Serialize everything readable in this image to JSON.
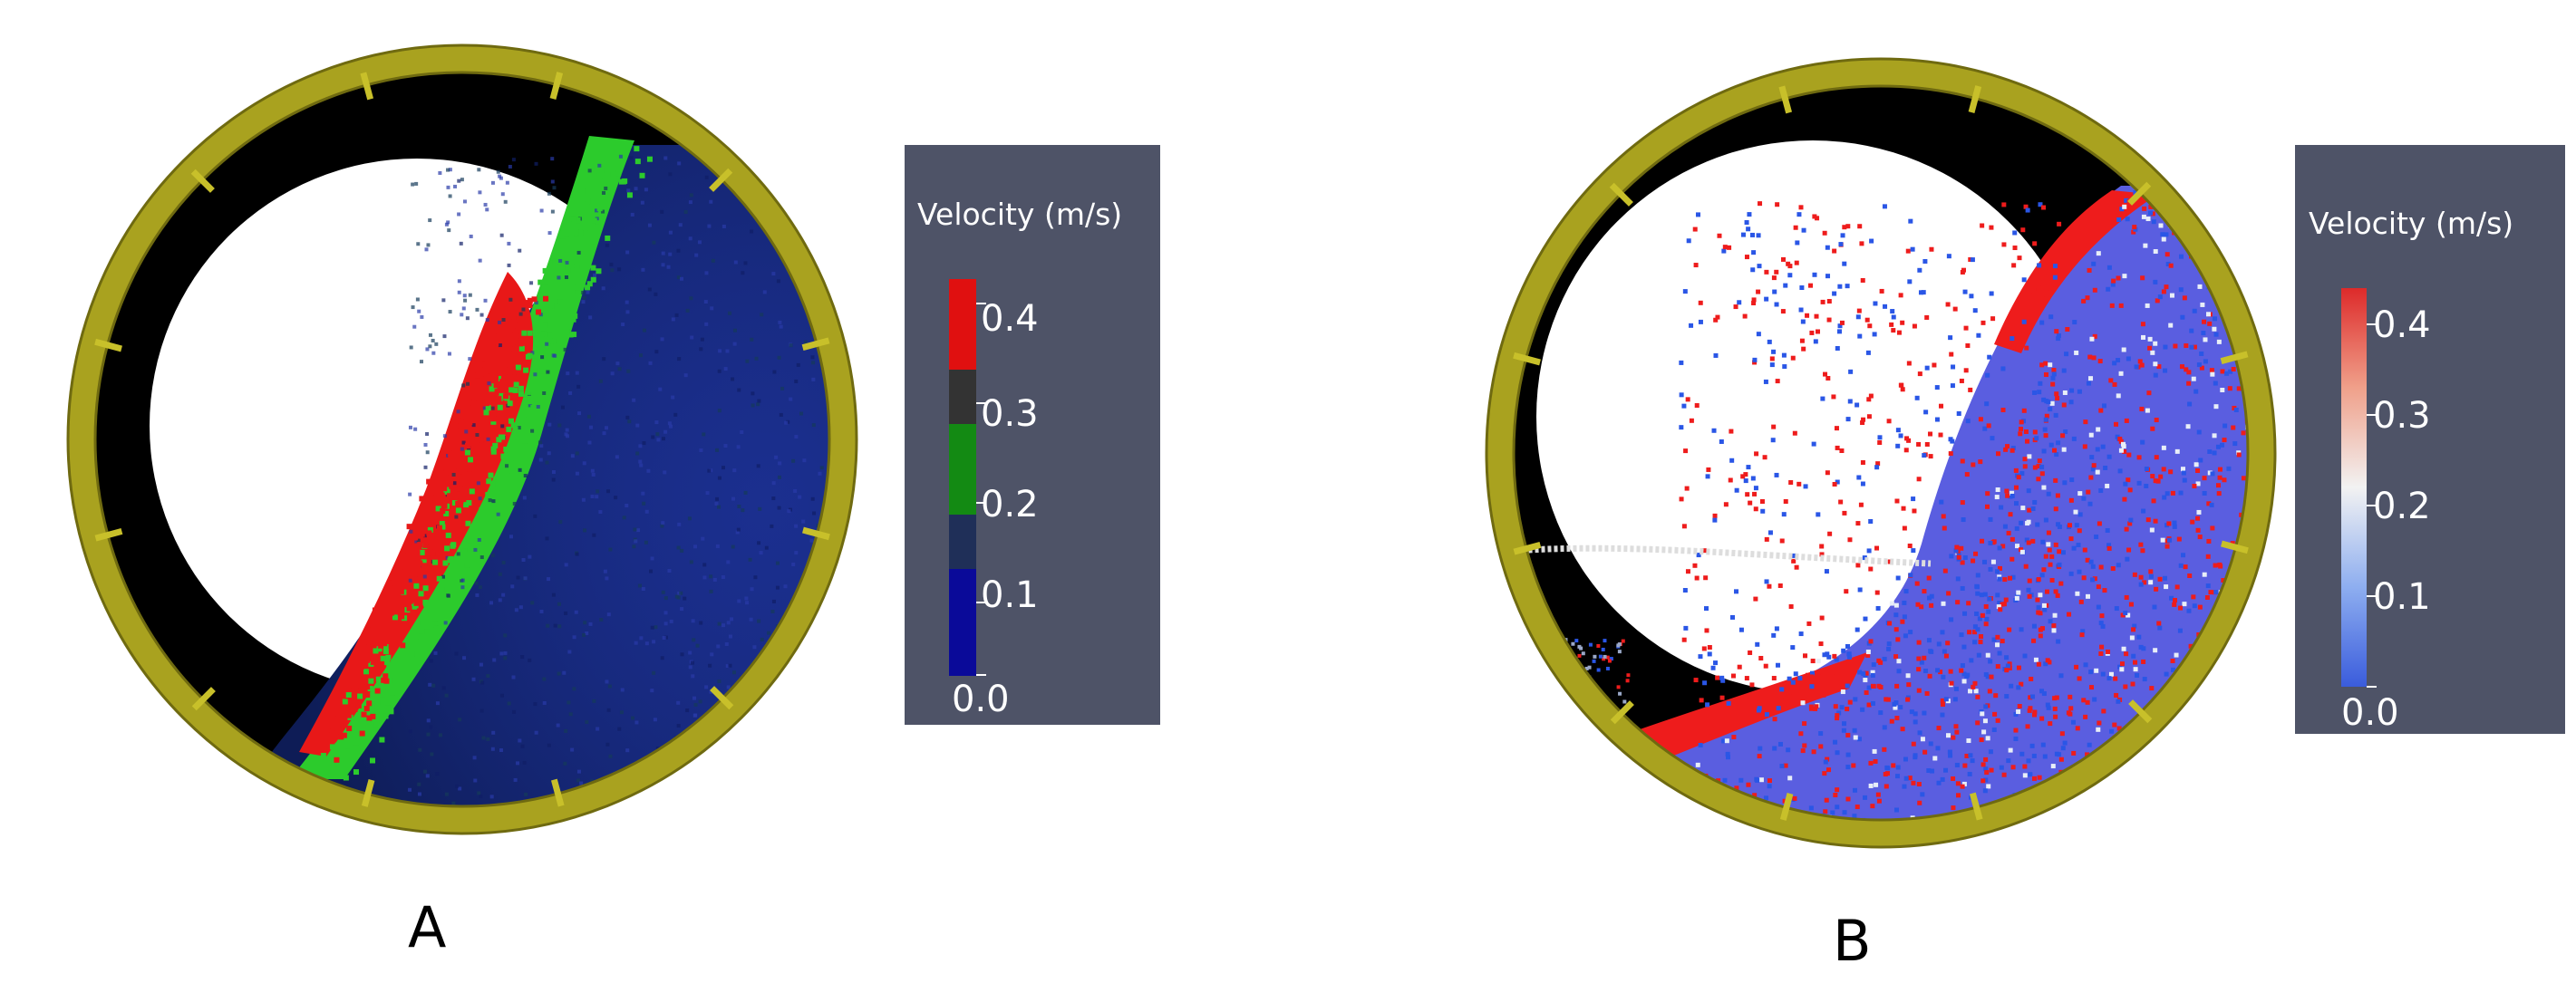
{
  "panels": [
    {
      "id": "A",
      "label": "A",
      "colorbar": {
        "title": "Velocity (m/s)",
        "ticks": [
          "0.4",
          "0.3",
          "0.2",
          "0.1",
          "0.0"
        ],
        "style": "discrete",
        "band_colors": [
          "#e01010",
          "#333333",
          "#138a13",
          "#1f2f58",
          "#0a0a99"
        ]
      },
      "particle_colors": {
        "fast": "#e81818",
        "mid": "#2ccb2c",
        "slow": "#1b2f8f"
      }
    },
    {
      "id": "B",
      "label": "B",
      "colorbar": {
        "title": "Velocity (m/s)",
        "ticks": [
          "0.4",
          "0.3",
          "0.2",
          "0.1",
          "0.0"
        ],
        "style": "gradient",
        "band_colors": [
          "#dd2a2a",
          "#f0a08a",
          "#f2f2f2",
          "#8eaef0",
          "#3a5cdc"
        ]
      },
      "particle_colors": {
        "fast": "#ee1c1c",
        "mid": "#e8eef8",
        "slow": "#2a56e6"
      }
    }
  ],
  "colors": {
    "rim": "#a9a21f",
    "rim_edge": "#6f6a10",
    "drum_interior": "#000000",
    "void": "#ffffff",
    "colorbar_bg": "#4e5367"
  }
}
